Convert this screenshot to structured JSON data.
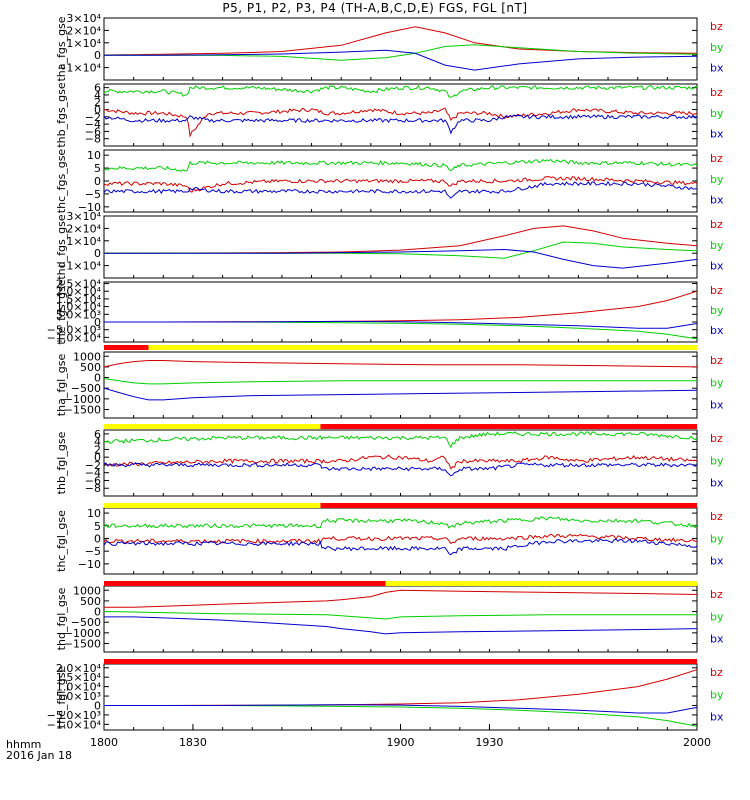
{
  "title": "P5, P1, P2, P3, P4 (TH-A,B,C,D,E) FGS, FGL [nT]",
  "footer": {
    "row1": "hhmm",
    "row2": "2016 Jan 18"
  },
  "colors": {
    "bz": "#d40000",
    "by": "#00d000",
    "bx": "#0000d0",
    "bar_red": "#ff0000",
    "bar_yellow": "#ffff00",
    "bar_black": "#000000"
  },
  "chart_data": [
    {
      "type": "line",
      "ylabel": "tha_fgs_gse",
      "ylim": [
        -20000,
        30000
      ],
      "ticks": [
        30000,
        20000,
        10000,
        0,
        -10000
      ],
      "tick_labels": [
        "3×10⁴",
        "2×10⁴",
        "1×10⁴",
        "0",
        "−1×10⁴"
      ],
      "x": [
        1800,
        1820,
        1840,
        1860,
        1880,
        1895,
        1905,
        1915,
        1925,
        1940,
        1960,
        1980,
        2000
      ],
      "series": [
        {
          "name": "bz",
          "values": [
            200,
            800,
            1500,
            3000,
            8000,
            18000,
            23000,
            18000,
            10000,
            5000,
            3000,
            2000,
            1500
          ]
        },
        {
          "name": "by",
          "values": [
            0,
            0,
            -200,
            -1000,
            -4000,
            -2000,
            1500,
            7000,
            8500,
            6000,
            3000,
            1500,
            800
          ]
        },
        {
          "name": "bx",
          "values": [
            0,
            0,
            300,
            1000,
            2500,
            4000,
            1500,
            -8000,
            -12000,
            -7000,
            -3000,
            -1500,
            -800
          ]
        }
      ]
    },
    {
      "type": "line",
      "ylabel": "thb_fgs_gse",
      "ylim": [
        -10,
        7
      ],
      "ticks": [
        6,
        4,
        2,
        0,
        -2,
        -4,
        -6,
        -8
      ],
      "tick_labels": [
        "6",
        "4",
        "2",
        "0",
        "−2",
        "−4",
        "−6",
        "−8"
      ],
      "x": [
        1800,
        1810,
        1820,
        1828,
        1829,
        1835,
        1850,
        1870,
        1875,
        1880,
        1890,
        1900,
        1910,
        1915,
        1917,
        1920,
        1930,
        1935,
        1950,
        1960,
        1980,
        2000
      ],
      "series": [
        {
          "name": "bz",
          "values": [
            0,
            -1,
            -1,
            -2,
            -7,
            -1,
            -1,
            0,
            -1,
            -1,
            0,
            -1,
            -1,
            0,
            -3,
            -1,
            -1,
            -2,
            -1,
            0,
            -1,
            -1
          ]
        },
        {
          "name": "by",
          "values": [
            5,
            5,
            5,
            4,
            6,
            6,
            6,
            5,
            6,
            6,
            5,
            6,
            6,
            5,
            3,
            5,
            6,
            6,
            6,
            6,
            6,
            6
          ]
        },
        {
          "name": "bx",
          "values": [
            -2,
            -3,
            -3,
            -3,
            -2,
            -3,
            -3,
            -3,
            -3,
            -3,
            -3,
            -3,
            -3,
            -3,
            -6,
            -3,
            -3,
            -2,
            -2,
            -2,
            -2,
            -2
          ]
        }
      ]
    },
    {
      "type": "line",
      "ylabel": "thc_fgs_gse",
      "ylim": [
        -12,
        12
      ],
      "ticks": [
        10,
        5,
        0,
        -5,
        -10
      ],
      "tick_labels": [
        "10",
        "5",
        "0",
        "−5",
        "−10"
      ],
      "x": [
        1800,
        1810,
        1820,
        1828,
        1829,
        1840,
        1860,
        1880,
        1900,
        1915,
        1917,
        1920,
        1935,
        1950,
        1960,
        1980,
        2000
      ],
      "series": [
        {
          "name": "bz",
          "values": [
            -1,
            -1,
            -1,
            -2,
            -4,
            -1,
            0,
            0,
            0,
            0,
            -2,
            0,
            0,
            1,
            1,
            0,
            -1
          ]
        },
        {
          "name": "by",
          "values": [
            5,
            5,
            5,
            4,
            7,
            7,
            7,
            7,
            7,
            6,
            4,
            6,
            7,
            8,
            7,
            7,
            6
          ]
        },
        {
          "name": "bx",
          "values": [
            -4,
            -4,
            -4,
            -4,
            -3,
            -4,
            -4,
            -4,
            -4,
            -4,
            -7,
            -4,
            -4,
            -1,
            -1,
            -1,
            -3
          ]
        }
      ]
    },
    {
      "type": "line",
      "ylabel": "thd_fgs_gse",
      "ylim": [
        -20000,
        30000
      ],
      "ticks": [
        30000,
        20000,
        10000,
        0,
        -10000
      ],
      "tick_labels": [
        "3×10⁴",
        "2×10⁴",
        "1×10⁴",
        "0",
        "−1×10⁴"
      ],
      "x": [
        1800,
        1830,
        1860,
        1880,
        1900,
        1920,
        1935,
        1945,
        1955,
        1965,
        1975,
        1990,
        2000
      ],
      "series": [
        {
          "name": "bz",
          "values": [
            0,
            200,
            500,
            1000,
            2500,
            6000,
            14000,
            20000,
            22000,
            18000,
            12000,
            8000,
            6000
          ]
        },
        {
          "name": "by",
          "values": [
            0,
            0,
            0,
            0,
            -500,
            -2000,
            -4000,
            2000,
            9000,
            8000,
            5000,
            3000,
            2000
          ]
        },
        {
          "name": "bx",
          "values": [
            0,
            0,
            0,
            500,
            1000,
            2000,
            3000,
            1000,
            -5000,
            -10000,
            -12000,
            -8000,
            -5000
          ]
        }
      ]
    },
    {
      "type": "line",
      "ylabel": "the_fgs_gse",
      "ylim": [
        -13000,
        26000
      ],
      "ticks": [
        25000,
        20000,
        15000,
        10000,
        5000,
        0,
        -5000,
        -10000
      ],
      "tick_labels": [
        "2.5×10⁴",
        "2.0×10⁴",
        "1.5×10⁴",
        "1.0×10⁴",
        "5.0×10³",
        "0",
        "−5.0×10³",
        "−1.0×10⁴"
      ],
      "x": [
        1800,
        1820,
        1840,
        1860,
        1880,
        1900,
        1920,
        1940,
        1960,
        1980,
        1990,
        2000
      ],
      "series": [
        {
          "name": "bz",
          "values": [
            0,
            0,
            100,
            200,
            400,
            800,
            1500,
            3000,
            6000,
            10000,
            14000,
            20000
          ]
        },
        {
          "name": "by",
          "values": [
            0,
            0,
            0,
            -200,
            -500,
            -800,
            -1500,
            -2500,
            -4000,
            -6000,
            -8000,
            -11000
          ]
        },
        {
          "name": "bx",
          "values": [
            0,
            0,
            0,
            200,
            400,
            200,
            -500,
            -1500,
            -2500,
            -4000,
            -4000,
            -1000
          ]
        }
      ]
    },
    {
      "type": "line",
      "ylabel": "tha_fgl_gse",
      "ylim": [
        -1900,
        1200
      ],
      "ticks": [
        1000,
        500,
        0,
        -500,
        -1000,
        -1500
      ],
      "tick_labels": [
        "1000",
        "500",
        "0",
        "−500",
        "−1000",
        "−1500"
      ],
      "x": [
        1800,
        1805,
        1810,
        1815,
        1820,
        1830,
        1850,
        1880,
        1910,
        1940,
        1970,
        2000
      ],
      "series": [
        {
          "name": "bz",
          "values": [
            500,
            650,
            750,
            800,
            800,
            750,
            700,
            650,
            600,
            600,
            550,
            500
          ]
        },
        {
          "name": "by",
          "values": [
            -50,
            -150,
            -250,
            -300,
            -300,
            -250,
            -200,
            -150,
            -150,
            -150,
            -150,
            -150
          ]
        },
        {
          "name": "bx",
          "values": [
            -500,
            -700,
            -900,
            -1050,
            -1050,
            -950,
            -850,
            -800,
            -750,
            -700,
            -650,
            -600
          ]
        }
      ]
    },
    {
      "type": "line",
      "ylabel": "thb_fgl_gse",
      "ylim": [
        -10,
        7
      ],
      "ticks": [
        6,
        4,
        2,
        0,
        -2,
        -4,
        -6,
        -8
      ],
      "tick_labels": [
        "6",
        "4",
        "2",
        "0",
        "−2",
        "−4",
        "−6",
        "−8"
      ],
      "x": [
        1800,
        1840,
        1873,
        1874,
        1880,
        1890,
        1900,
        1910,
        1915,
        1917,
        1920,
        1930,
        1940,
        1950,
        1960,
        1980,
        2000
      ],
      "series": [
        {
          "name": "bz",
          "values": [
            -2,
            -1,
            -1,
            -1,
            -1,
            0,
            0,
            -1,
            0,
            -3,
            -1,
            -1,
            -1,
            0,
            -1,
            0,
            -1
          ]
        },
        {
          "name": "by",
          "values": [
            4,
            5,
            5,
            5,
            5,
            5,
            5,
            5,
            5,
            3,
            5,
            6,
            6,
            6,
            6,
            6,
            5
          ]
        },
        {
          "name": "bx",
          "values": [
            -2,
            -2,
            -2,
            -3,
            -3,
            -3,
            -3,
            -3,
            -3,
            -5,
            -3,
            -3,
            -2,
            -2,
            -2,
            -2,
            -2
          ]
        }
      ]
    },
    {
      "type": "line",
      "ylabel": "thc_fgl_gse",
      "ylim": [
        -14,
        12
      ],
      "ticks": [
        10,
        5,
        0,
        -5,
        -10
      ],
      "tick_labels": [
        "10",
        "5",
        "0",
        "−5",
        "−10"
      ],
      "x": [
        1800,
        1840,
        1873,
        1874,
        1880,
        1900,
        1915,
        1917,
        1920,
        1935,
        1950,
        1960,
        1980,
        2000
      ],
      "series": [
        {
          "name": "bz",
          "values": [
            -1,
            -1,
            -1,
            0,
            0,
            0,
            0,
            -2,
            0,
            0,
            1,
            1,
            0,
            -1
          ]
        },
        {
          "name": "by",
          "values": [
            5,
            5,
            5,
            7,
            7,
            7,
            6,
            4,
            6,
            7,
            8,
            7,
            7,
            5
          ]
        },
        {
          "name": "bx",
          "values": [
            -2,
            -2,
            -2,
            -4,
            -4,
            -4,
            -4,
            -7,
            -4,
            -4,
            -1,
            -1,
            -1,
            -3
          ]
        }
      ]
    },
    {
      "type": "line",
      "ylabel": "thd_fgl_gse",
      "ylim": [
        -1900,
        1200
      ],
      "ticks": [
        1000,
        500,
        0,
        -500,
        -1000,
        -1500
      ],
      "tick_labels": [
        "1000",
        "500",
        "0",
        "−500",
        "−1000",
        "−1500"
      ],
      "x": [
        1800,
        1810,
        1820,
        1830,
        1840,
        1875,
        1880,
        1890,
        1895,
        1900,
        1920,
        1950,
        1980,
        2000
      ],
      "series": [
        {
          "name": "bz",
          "values": [
            200,
            200,
            250,
            300,
            350,
            500,
            550,
            700,
            900,
            1000,
            950,
            900,
            850,
            800
          ]
        },
        {
          "name": "by",
          "values": [
            0,
            -20,
            -50,
            -80,
            -100,
            -150,
            -200,
            -300,
            -350,
            -250,
            -200,
            -150,
            -150,
            -150
          ]
        },
        {
          "name": "bx",
          "values": [
            -250,
            -250,
            -300,
            -350,
            -400,
            -700,
            -800,
            -950,
            -1050,
            -1000,
            -950,
            -900,
            -850,
            -800
          ]
        }
      ]
    },
    {
      "type": "line",
      "ylabel": "the_fgl_gse",
      "ylim": [
        -13000,
        22000
      ],
      "ticks": [
        20000,
        15000,
        10000,
        5000,
        0,
        -5000,
        -10000
      ],
      "tick_labels": [
        "2.0×10⁴",
        "1.5×10⁴",
        "1.0×10⁴",
        "5.0×10³",
        "0",
        "−5.0×10³",
        "−1.0×10⁴"
      ],
      "x": [
        1800,
        1820,
        1840,
        1860,
        1880,
        1900,
        1920,
        1940,
        1960,
        1980,
        1990,
        2000
      ],
      "series": [
        {
          "name": "bz",
          "values": [
            0,
            0,
            100,
            200,
            400,
            800,
            1500,
            3000,
            6000,
            10000,
            14000,
            19000
          ]
        },
        {
          "name": "by",
          "values": [
            0,
            0,
            0,
            -200,
            -500,
            -800,
            -1500,
            -2500,
            -4000,
            -6000,
            -8000,
            -11000
          ]
        },
        {
          "name": "bx",
          "values": [
            0,
            0,
            0,
            200,
            400,
            200,
            -500,
            -1500,
            -2500,
            -4000,
            -4000,
            -1000
          ]
        }
      ]
    }
  ],
  "x_axis": {
    "ticks": [
      1800,
      1830,
      1900,
      1930,
      2000
    ],
    "tick_labels": [
      "1800",
      "1830",
      "1900",
      "1930",
      "2000"
    ]
  },
  "legend_labels": [
    "bz",
    "by",
    "bx"
  ],
  "quality_bars": [
    {
      "segments": [
        {
          "from": 1800,
          "to": 1815,
          "color": "red"
        },
        {
          "from": 1815,
          "to": 2000,
          "color": "yellow"
        }
      ]
    },
    {
      "segments": [
        {
          "from": 1800,
          "to": 1873,
          "color": "yellow"
        },
        {
          "from": 1873,
          "to": 2000,
          "color": "red"
        }
      ]
    },
    {
      "segments": [
        {
          "from": 1800,
          "to": 1873,
          "color": "yellow"
        },
        {
          "from": 1873,
          "to": 2000,
          "color": "red"
        }
      ]
    },
    {
      "segments": [
        {
          "from": 1800,
          "to": 1895,
          "color": "red"
        },
        {
          "from": 1895,
          "to": 2000,
          "color": "yellow"
        }
      ]
    },
    {
      "segments": [
        {
          "from": 1800,
          "to": 2000,
          "color": "red"
        }
      ]
    }
  ]
}
